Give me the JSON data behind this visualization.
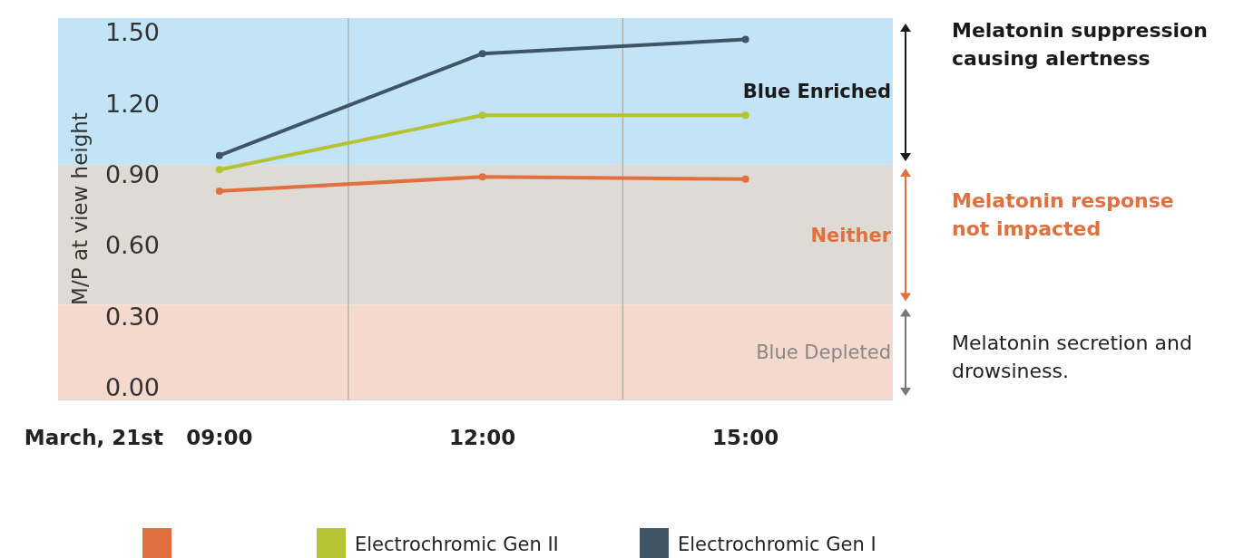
{
  "chart_data": {
    "type": "line",
    "xlabel": "March, 21st",
    "ylabel": "M/P  at view height",
    "x": [
      9,
      12,
      15
    ],
    "xlim": [
      7.16,
      16.68
    ],
    "xticks": [
      {
        "value": 9,
        "label": "09:00"
      },
      {
        "value": 12,
        "label": "12:00"
      },
      {
        "value": 15,
        "label": "15:00"
      }
    ],
    "ylim": [
      -0.05,
      1.56
    ],
    "yticks": [
      {
        "value": 0,
        "label": "0.00"
      },
      {
        "value": 0.3,
        "label": "0.30"
      },
      {
        "value": 0.6,
        "label": "0.60"
      },
      {
        "value": 0.9,
        "label": "0.90"
      },
      {
        "value": 1.2,
        "label": "1.20"
      },
      {
        "value": 1.5,
        "label": "1.50"
      }
    ],
    "series": [
      {
        "color": "#e07040",
        "values": [
          0.83,
          0.89,
          0.88
        ]
      },
      {
        "name": "Electrochromic Gen II",
        "color": "#b5c232",
        "values": [
          0.92,
          1.15,
          1.15
        ]
      },
      {
        "name": "Electrochromic Gen I",
        "color": "#3f5565",
        "values": [
          0.98,
          1.41,
          1.47
        ]
      }
    ],
    "bands": [
      {
        "axis": "y",
        "from": 0.94,
        "to": 1.56,
        "label": "Blue  Enriched",
        "color": "#c2e4f6"
      },
      {
        "axis": "y",
        "from": 0.35,
        "to": 0.94,
        "label": "Neither",
        "color": "#dedbd5"
      },
      {
        "axis": "y",
        "from": -0.05,
        "to": 0.35,
        "label": "Blue Depleted",
        "color": "#f4d9cc"
      }
    ],
    "ref_lines": [
      {
        "axis": "x",
        "value": 10.47,
        "color": "#a9a9a0"
      },
      {
        "axis": "x",
        "value": 13.6,
        "color": "#a9a9a0"
      }
    ],
    "annotations": [
      "Melatonin suppression causing alertness",
      "Melatonin response not impacted",
      "Melatonin secretion and drowsiness."
    ],
    "marker": "circle",
    "legend": "bottom"
  }
}
